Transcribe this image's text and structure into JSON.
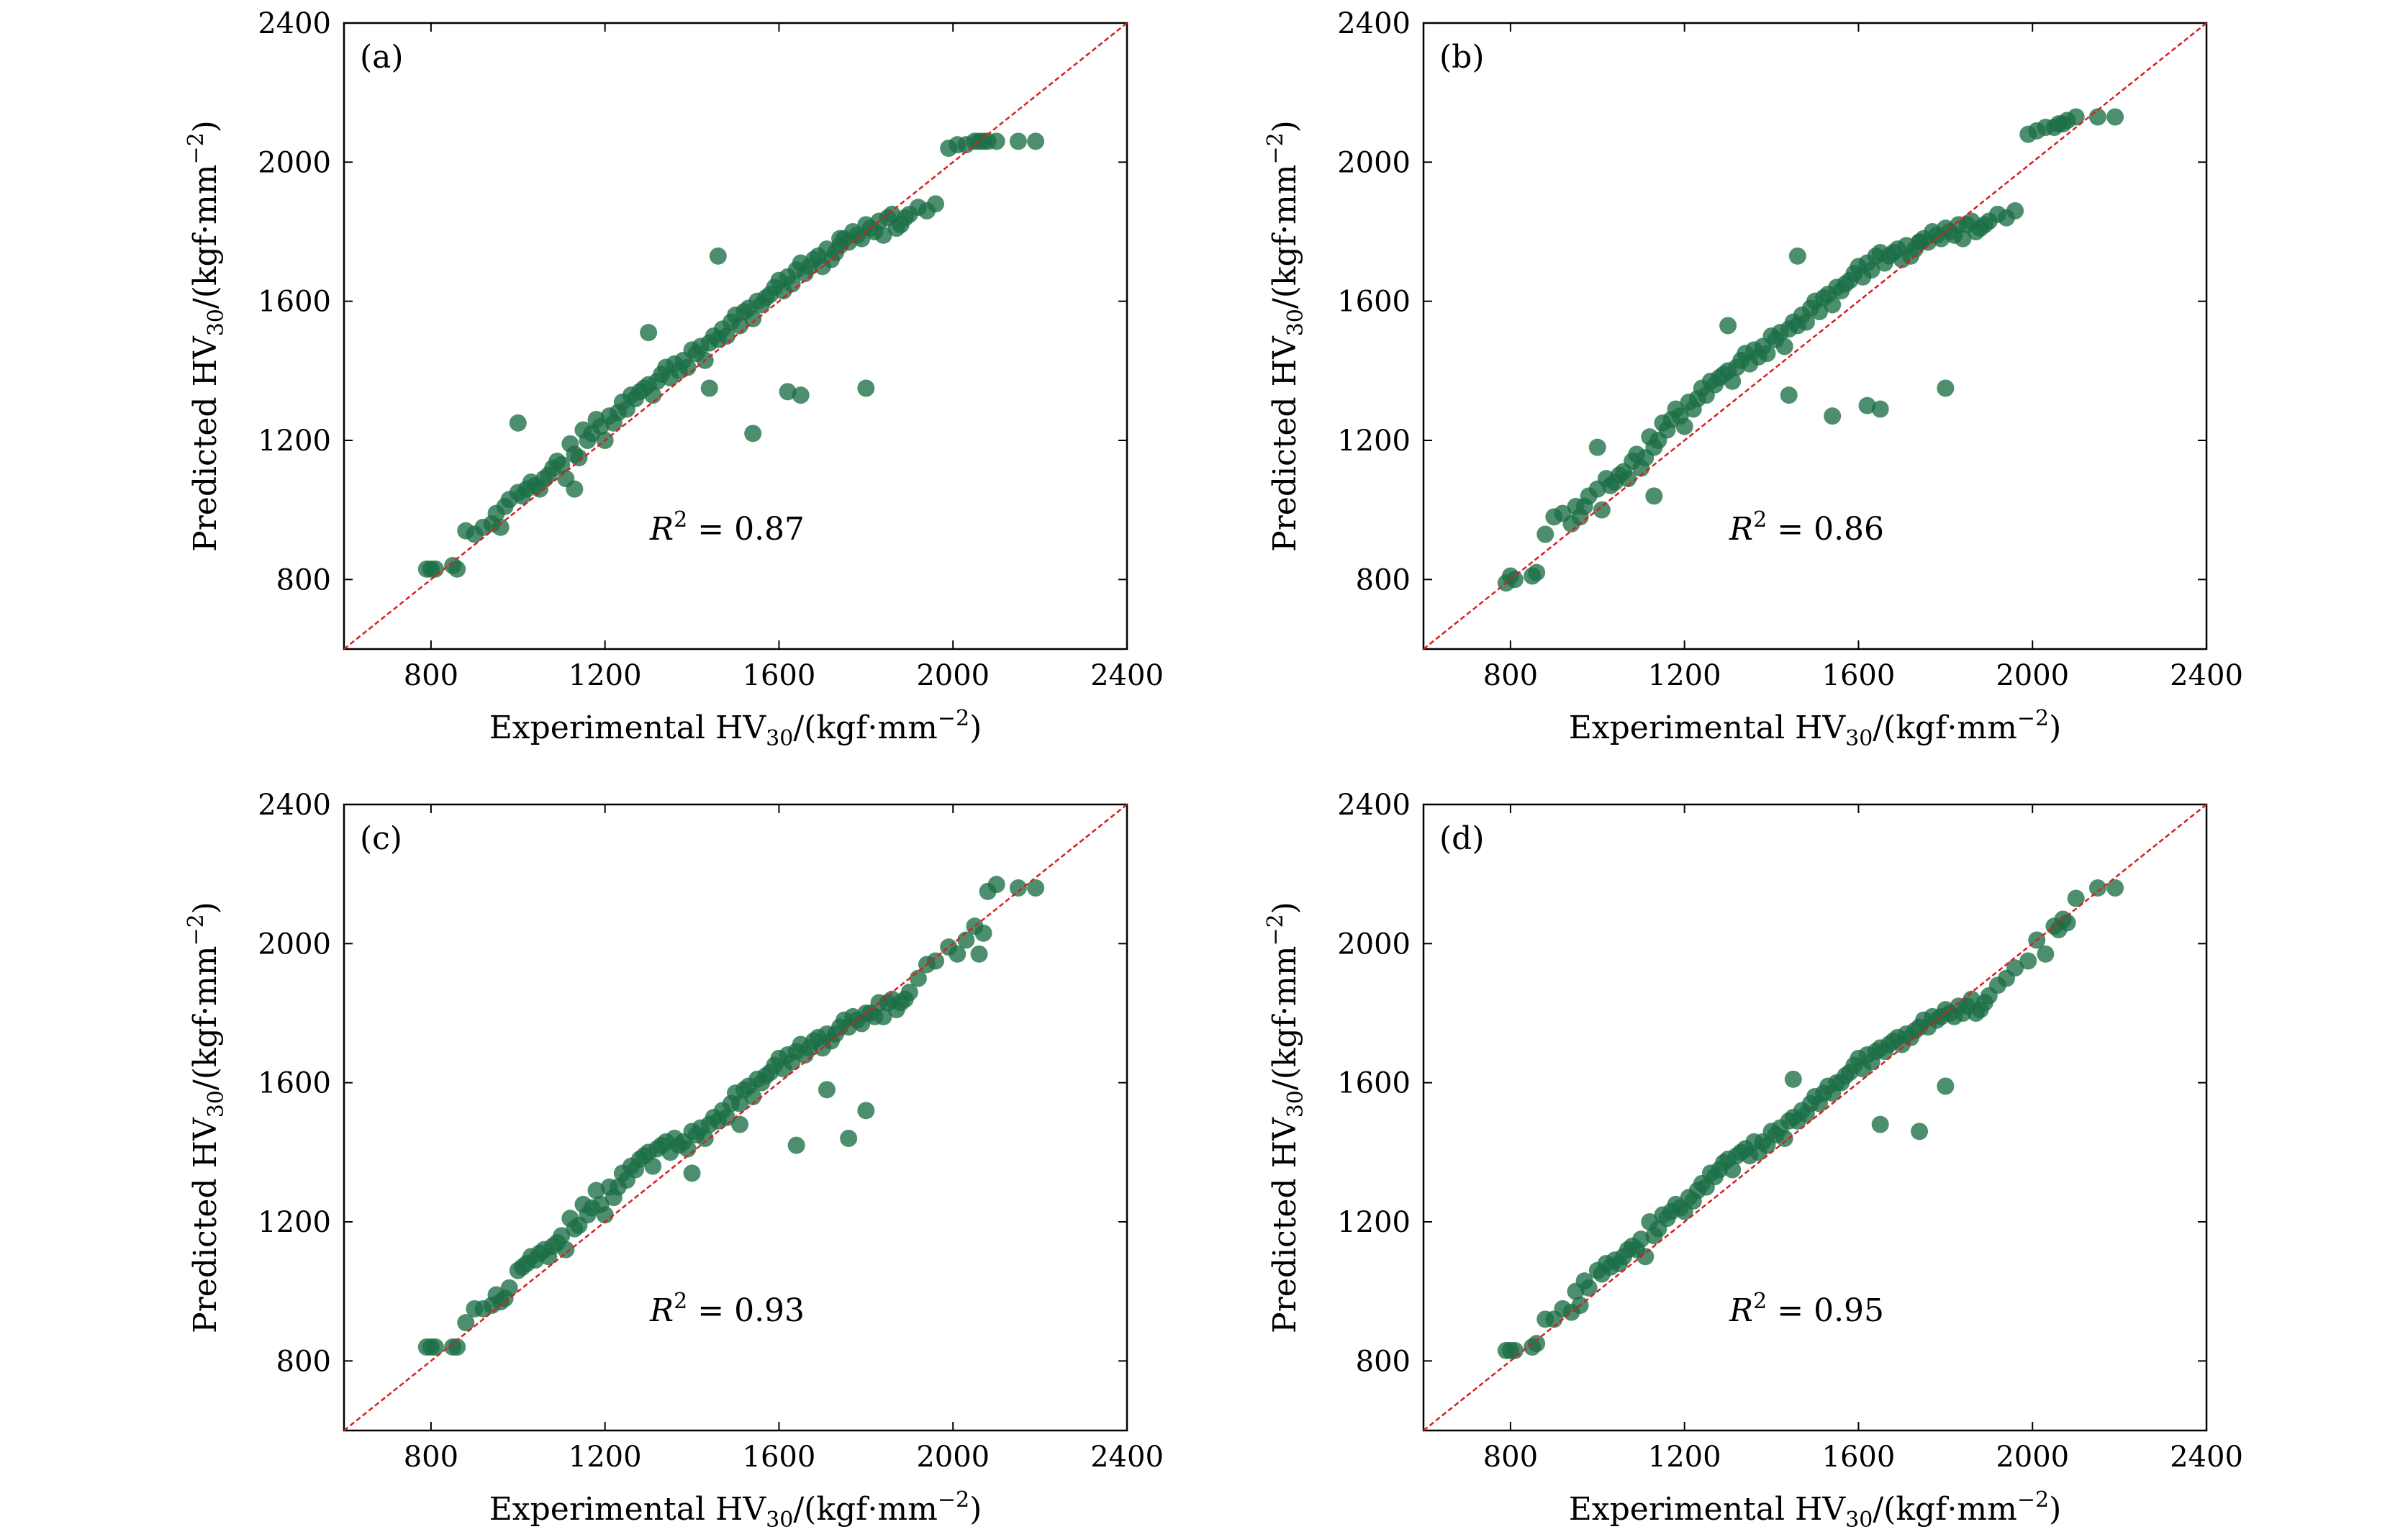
{
  "figure": {
    "x_axis_title": {
      "main": "Experimental HV",
      "sub": "30",
      "tail": "/(kgf·mm",
      "sup": "−2",
      "close": ")"
    },
    "y_axis_title": {
      "main": "Predicted HV",
      "sub": "30",
      "tail": "/(kgf·mm",
      "sup": "−2",
      "close": ")"
    },
    "colors": {
      "points": "#1b6e45",
      "diagonal": "#d62020",
      "axes": "#000000"
    }
  },
  "chart_data": [
    {
      "type": "scatter",
      "panel": "(a)",
      "r2": {
        "symbol": "R",
        "power": "2",
        "text": " = 0.87"
      },
      "xlim": [
        600,
        2400
      ],
      "ylim": [
        600,
        2400
      ],
      "x_ticks": [
        "800",
        "1200",
        "1600",
        "2000",
        "2400"
      ],
      "y_ticks": [
        "800",
        "1200",
        "1600",
        "2000",
        "2400"
      ],
      "reference_line": "y = x",
      "spread": 95,
      "x": [
        790,
        800,
        810,
        850,
        860,
        880,
        900,
        920,
        940,
        950,
        960,
        970,
        980,
        1000,
        1010,
        1020,
        1030,
        1040,
        1050,
        1060,
        1070,
        1080,
        1090,
        1100,
        1110,
        1120,
        1130,
        1140,
        1150,
        1160,
        1170,
        1180,
        1190,
        1200,
        1210,
        1220,
        1230,
        1240,
        1250,
        1260,
        1270,
        1280,
        1290,
        1300,
        1310,
        1320,
        1330,
        1340,
        1350,
        1360,
        1370,
        1380,
        1390,
        1400,
        1410,
        1420,
        1430,
        1440,
        1450,
        1460,
        1470,
        1480,
        1490,
        1500,
        1510,
        1520,
        1530,
        1540,
        1550,
        1560,
        1570,
        1580,
        1590,
        1600,
        1610,
        1620,
        1630,
        1640,
        1650,
        1660,
        1670,
        1680,
        1690,
        1700,
        1710,
        1720,
        1730,
        1740,
        1750,
        1760,
        1770,
        1780,
        1790,
        1800,
        1810,
        1820,
        1830,
        1840,
        1850,
        1860,
        1870,
        1880,
        1890,
        1900,
        1920,
        1940,
        1960,
        1990,
        2010,
        2030,
        2050,
        2060,
        2070,
        2080,
        2100,
        2150,
        2190,
        1800,
        1540,
        1460,
        1300,
        1440,
        1620,
        1740,
        1650,
        1130,
        1000
      ],
      "y": [
        830,
        830,
        830,
        840,
        830,
        940,
        930,
        950,
        960,
        990,
        950,
        1010,
        1030,
        1050,
        1040,
        1060,
        1080,
        1070,
        1060,
        1090,
        1100,
        1120,
        1140,
        1130,
        1090,
        1190,
        1160,
        1150,
        1230,
        1200,
        1220,
        1260,
        1240,
        1200,
        1270,
        1250,
        1280,
        1310,
        1290,
        1330,
        1320,
        1340,
        1350,
        1360,
        1330,
        1370,
        1390,
        1410,
        1380,
        1420,
        1400,
        1430,
        1410,
        1460,
        1450,
        1470,
        1430,
        1480,
        1500,
        1490,
        1520,
        1500,
        1540,
        1560,
        1530,
        1570,
        1580,
        1550,
        1600,
        1590,
        1610,
        1620,
        1640,
        1660,
        1630,
        1670,
        1650,
        1690,
        1710,
        1680,
        1700,
        1720,
        1730,
        1700,
        1750,
        1720,
        1740,
        1760,
        1780,
        1770,
        1800,
        1790,
        1780,
        1820,
        1810,
        1800,
        1830,
        1790,
        1840,
        1850,
        1810,
        1820,
        1840,
        1850,
        1870,
        1860,
        1880,
        2040,
        2050,
        2050,
        2060,
        2060,
        2060,
        2060,
        2060,
        2060,
        2060,
        1350,
        1220,
        1730,
        1510,
        1350,
        1340,
        1780,
        1330,
        1060,
        1250
      ]
    },
    {
      "type": "scatter",
      "panel": "(b)",
      "r2": {
        "symbol": "R",
        "power": "2",
        "text": " = 0.86"
      },
      "xlim": [
        600,
        2400
      ],
      "ylim": [
        600,
        2400
      ],
      "x_ticks": [
        "800",
        "1200",
        "1600",
        "2000",
        "2400"
      ],
      "y_ticks": [
        "800",
        "1200",
        "1600",
        "2000",
        "2400"
      ],
      "reference_line": "y = x",
      "spread": 95,
      "x": [
        790,
        800,
        810,
        850,
        860,
        880,
        900,
        920,
        940,
        950,
        960,
        970,
        980,
        1000,
        1010,
        1020,
        1030,
        1040,
        1050,
        1060,
        1070,
        1080,
        1090,
        1100,
        1110,
        1120,
        1130,
        1140,
        1150,
        1160,
        1170,
        1180,
        1190,
        1200,
        1210,
        1220,
        1230,
        1240,
        1250,
        1260,
        1270,
        1280,
        1290,
        1300,
        1310,
        1320,
        1330,
        1340,
        1350,
        1360,
        1370,
        1380,
        1390,
        1400,
        1410,
        1420,
        1430,
        1440,
        1450,
        1460,
        1470,
        1480,
        1490,
        1500,
        1510,
        1520,
        1530,
        1540,
        1550,
        1560,
        1570,
        1580,
        1590,
        1600,
        1610,
        1620,
        1630,
        1640,
        1650,
        1660,
        1670,
        1680,
        1690,
        1700,
        1710,
        1720,
        1730,
        1740,
        1750,
        1760,
        1770,
        1780,
        1790,
        1800,
        1810,
        1820,
        1830,
        1840,
        1850,
        1860,
        1870,
        1880,
        1890,
        1900,
        1920,
        1940,
        1960,
        1990,
        2010,
        2030,
        2050,
        2060,
        2070,
        2080,
        2100,
        2150,
        2190,
        1800,
        1540,
        1460,
        1300,
        1440,
        1620,
        1740,
        1650,
        1130,
        1000
      ],
      "y": [
        790,
        810,
        800,
        810,
        820,
        930,
        980,
        990,
        960,
        1010,
        980,
        1010,
        1040,
        1060,
        1000,
        1090,
        1070,
        1080,
        1100,
        1110,
        1090,
        1140,
        1160,
        1120,
        1150,
        1210,
        1180,
        1200,
        1250,
        1230,
        1260,
        1290,
        1270,
        1240,
        1310,
        1290,
        1320,
        1350,
        1330,
        1370,
        1360,
        1380,
        1390,
        1400,
        1370,
        1410,
        1430,
        1450,
        1420,
        1460,
        1440,
        1470,
        1450,
        1500,
        1490,
        1510,
        1470,
        1520,
        1540,
        1530,
        1560,
        1540,
        1580,
        1600,
        1570,
        1610,
        1620,
        1590,
        1640,
        1630,
        1650,
        1660,
        1680,
        1700,
        1670,
        1710,
        1690,
        1730,
        1740,
        1710,
        1730,
        1740,
        1750,
        1720,
        1760,
        1730,
        1750,
        1770,
        1780,
        1770,
        1800,
        1790,
        1780,
        1810,
        1800,
        1790,
        1820,
        1780,
        1820,
        1830,
        1800,
        1810,
        1820,
        1830,
        1850,
        1840,
        1860,
        2080,
        2090,
        2100,
        2100,
        2110,
        2110,
        2120,
        2130,
        2130,
        2130,
        1350,
        1270,
        1730,
        1530,
        1330,
        1300,
        1770,
        1290,
        1040,
        1180
      ]
    },
    {
      "type": "scatter",
      "panel": "(c)",
      "r2": {
        "symbol": "R",
        "power": "2",
        "text": " = 0.93"
      },
      "xlim": [
        600,
        2400
      ],
      "ylim": [
        600,
        2400
      ],
      "x_ticks": [
        "800",
        "1200",
        "1600",
        "2000",
        "2400"
      ],
      "y_ticks": [
        "800",
        "1200",
        "1600",
        "2000",
        "2400"
      ],
      "reference_line": "y = x",
      "spread": 60,
      "x": [
        790,
        800,
        810,
        850,
        860,
        880,
        900,
        920,
        940,
        950,
        960,
        970,
        980,
        1000,
        1010,
        1020,
        1030,
        1040,
        1050,
        1060,
        1070,
        1080,
        1090,
        1100,
        1110,
        1120,
        1130,
        1140,
        1150,
        1160,
        1170,
        1180,
        1190,
        1200,
        1210,
        1220,
        1230,
        1240,
        1250,
        1260,
        1270,
        1280,
        1290,
        1300,
        1310,
        1320,
        1330,
        1340,
        1350,
        1360,
        1370,
        1380,
        1390,
        1400,
        1410,
        1420,
        1430,
        1440,
        1450,
        1460,
        1470,
        1480,
        1490,
        1500,
        1510,
        1520,
        1530,
        1540,
        1550,
        1560,
        1570,
        1580,
        1590,
        1600,
        1610,
        1620,
        1630,
        1640,
        1650,
        1660,
        1670,
        1680,
        1690,
        1700,
        1710,
        1720,
        1730,
        1740,
        1750,
        1760,
        1770,
        1780,
        1790,
        1800,
        1810,
        1820,
        1830,
        1840,
        1850,
        1860,
        1870,
        1880,
        1890,
        1900,
        1920,
        1940,
        1960,
        1990,
        2010,
        2030,
        2050,
        2060,
        2070,
        2080,
        2100,
        2150,
        2190,
        1760,
        1640,
        1800,
        1710,
        1510,
        1400
      ],
      "y": [
        840,
        840,
        840,
        840,
        840,
        910,
        950,
        950,
        960,
        990,
        970,
        980,
        1010,
        1060,
        1070,
        1080,
        1100,
        1090,
        1110,
        1120,
        1100,
        1130,
        1140,
        1160,
        1120,
        1210,
        1180,
        1190,
        1250,
        1220,
        1240,
        1290,
        1250,
        1220,
        1300,
        1270,
        1300,
        1340,
        1320,
        1360,
        1350,
        1380,
        1390,
        1400,
        1360,
        1410,
        1420,
        1430,
        1400,
        1440,
        1420,
        1430,
        1410,
        1460,
        1450,
        1470,
        1440,
        1480,
        1500,
        1490,
        1520,
        1500,
        1540,
        1570,
        1540,
        1580,
        1590,
        1560,
        1610,
        1600,
        1620,
        1630,
        1650,
        1670,
        1640,
        1680,
        1660,
        1690,
        1710,
        1680,
        1700,
        1720,
        1730,
        1700,
        1740,
        1720,
        1740,
        1760,
        1780,
        1760,
        1790,
        1780,
        1770,
        1800,
        1800,
        1790,
        1830,
        1790,
        1830,
        1840,
        1810,
        1830,
        1840,
        1860,
        1900,
        1940,
        1950,
        1990,
        1970,
        2010,
        2050,
        1970,
        2030,
        2150,
        2170,
        2160,
        2160,
        1440,
        1420,
        1520,
        1580,
        1480,
        1340
      ]
    },
    {
      "type": "scatter",
      "panel": "(d)",
      "r2": {
        "symbol": "R",
        "power": "2",
        "text": " = 0.95"
      },
      "xlim": [
        600,
        2400
      ],
      "ylim": [
        600,
        2400
      ],
      "x_ticks": [
        "800",
        "1200",
        "1600",
        "2000",
        "2400"
      ],
      "y_ticks": [
        "800",
        "1200",
        "1600",
        "2000",
        "2400"
      ],
      "reference_line": "y = x",
      "spread": 50,
      "x": [
        790,
        800,
        810,
        850,
        860,
        880,
        900,
        920,
        940,
        950,
        960,
        970,
        980,
        1000,
        1010,
        1020,
        1030,
        1040,
        1050,
        1060,
        1070,
        1080,
        1090,
        1100,
        1110,
        1120,
        1130,
        1140,
        1150,
        1160,
        1170,
        1180,
        1190,
        1200,
        1210,
        1220,
        1230,
        1240,
        1250,
        1260,
        1270,
        1280,
        1290,
        1300,
        1310,
        1320,
        1330,
        1340,
        1350,
        1360,
        1370,
        1380,
        1390,
        1400,
        1410,
        1420,
        1430,
        1440,
        1450,
        1460,
        1470,
        1480,
        1490,
        1500,
        1510,
        1520,
        1530,
        1540,
        1550,
        1560,
        1570,
        1580,
        1590,
        1600,
        1610,
        1620,
        1630,
        1640,
        1650,
        1660,
        1670,
        1680,
        1690,
        1700,
        1710,
        1720,
        1730,
        1740,
        1750,
        1760,
        1770,
        1780,
        1790,
        1800,
        1810,
        1820,
        1830,
        1840,
        1850,
        1860,
        1870,
        1880,
        1890,
        1900,
        1920,
        1940,
        1960,
        1990,
        2010,
        2030,
        2050,
        2060,
        2070,
        2080,
        2100,
        2150,
        2190,
        1740,
        1800,
        1450,
        1650
      ],
      "y": [
        830,
        830,
        830,
        840,
        850,
        920,
        920,
        950,
        940,
        1000,
        960,
        1030,
        1010,
        1060,
        1050,
        1080,
        1070,
        1090,
        1080,
        1100,
        1120,
        1130,
        1120,
        1150,
        1100,
        1200,
        1160,
        1180,
        1220,
        1210,
        1230,
        1250,
        1240,
        1230,
        1270,
        1260,
        1290,
        1310,
        1300,
        1340,
        1330,
        1350,
        1370,
        1380,
        1350,
        1390,
        1400,
        1410,
        1390,
        1430,
        1400,
        1430,
        1420,
        1460,
        1450,
        1470,
        1440,
        1490,
        1500,
        1490,
        1520,
        1510,
        1540,
        1560,
        1540,
        1570,
        1590,
        1570,
        1600,
        1600,
        1620,
        1630,
        1650,
        1670,
        1640,
        1680,
        1660,
        1690,
        1700,
        1690,
        1710,
        1720,
        1730,
        1710,
        1740,
        1730,
        1750,
        1760,
        1780,
        1760,
        1790,
        1780,
        1790,
        1810,
        1800,
        1790,
        1820,
        1800,
        1820,
        1840,
        1800,
        1810,
        1830,
        1850,
        1880,
        1900,
        1930,
        1950,
        2010,
        1970,
        2050,
        2040,
        2070,
        2060,
        2130,
        2160,
        2160,
        1460,
        1590,
        1610,
        1480
      ]
    }
  ]
}
